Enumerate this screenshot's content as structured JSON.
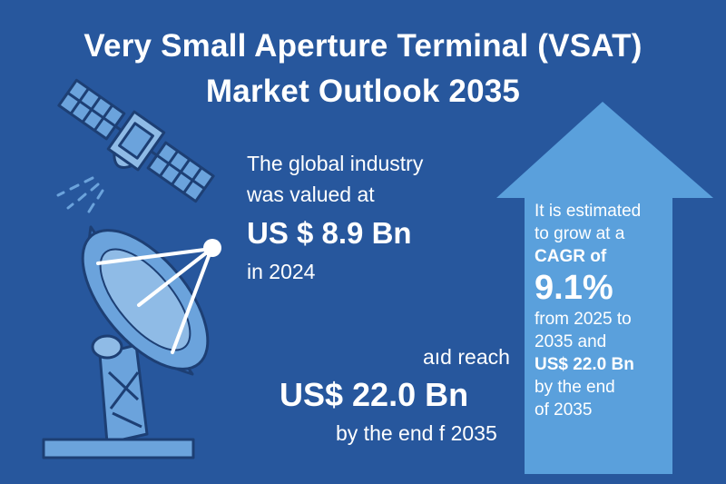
{
  "title": {
    "line1": "Very Small Aperture Terminal (VSAT)",
    "line2": "Market Outlook 2035"
  },
  "valuation": {
    "line1": "The global industry",
    "line2": "was valued at",
    "amount": "US $ 8.9 Bn",
    "year": "in 2024"
  },
  "forecast": {
    "line1": "aıd reach",
    "amount": "US$ 22.0 Bn",
    "line2": "by the end f 2035"
  },
  "arrow": {
    "line1": "It is estimated",
    "line2": "to grow at a",
    "cagr_label": "CAGR of",
    "cagr_value": "9.1%",
    "line3": "from 2025 to",
    "line4": "2035 and",
    "amount": "US$ 22.0 Bn",
    "line5": "by the end",
    "line6": "of 2035"
  },
  "icons": [
    "satellite-icon",
    "satellite-dish-icon",
    "growth-arrow-icon"
  ],
  "colors": {
    "background": "#27579d",
    "arrow": "#5aa0dc",
    "illustration_light": "#6ba3dc",
    "illustration_dark": "#1d3f74",
    "text": "#ffffff"
  }
}
